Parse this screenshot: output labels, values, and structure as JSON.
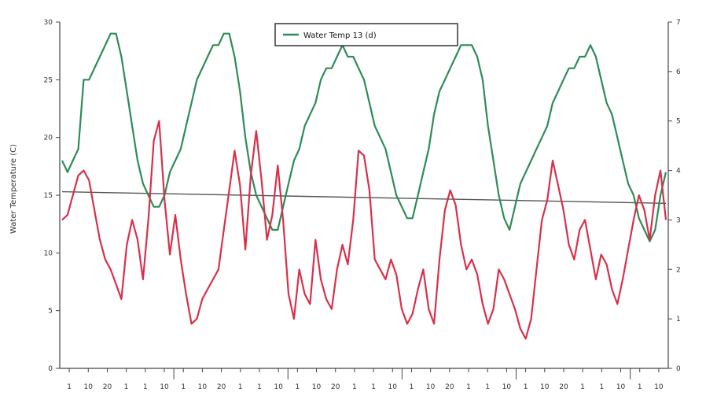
{
  "chart_data": {
    "type": "line",
    "legend": {
      "placement": "top-center",
      "label": "Water Temp 13 (d)"
    },
    "y_left": {
      "label": "Water Temperature (C)",
      "ylim": [
        0,
        30
      ],
      "ticks": [
        "0",
        "5",
        "10",
        "15",
        "20",
        "25",
        "30"
      ]
    },
    "y_right": {
      "label": "",
      "ylim": [
        0,
        7
      ],
      "ticks": [
        "0",
        "1",
        "2",
        "3",
        "4",
        "5",
        "6",
        "7"
      ]
    },
    "x_tick_labels": [
      "1",
      "10",
      "20",
      "1",
      "1",
      "10",
      "1",
      "10",
      "20",
      "1",
      "1",
      "10",
      "1",
      "10",
      "20",
      "1",
      "1",
      "10",
      "1",
      "10",
      "20",
      "1",
      "1",
      "10",
      "1",
      "10",
      "20",
      "1",
      "1",
      "10",
      "1",
      "10"
    ],
    "series": [
      {
        "axis": "left",
        "color": "#2e8b57",
        "values": [
          18,
          17,
          18,
          19,
          25,
          25,
          26,
          27,
          28,
          29,
          29,
          27,
          24,
          21,
          18,
          16,
          15,
          14,
          14,
          15,
          17,
          18,
          19,
          21,
          23,
          25,
          26,
          27,
          28,
          28,
          29,
          29,
          27,
          24,
          20,
          17,
          15,
          14,
          13,
          12,
          12,
          14,
          16,
          18,
          19,
          21,
          22,
          23,
          25,
          26,
          26,
          27,
          28,
          27,
          27,
          26,
          25,
          23,
          21,
          20,
          19,
          17,
          15,
          14,
          13,
          13,
          15,
          17,
          19,
          22,
          24,
          25,
          26,
          27,
          28,
          28,
          28,
          27,
          25,
          21,
          18,
          15,
          13,
          12,
          14,
          16,
          17,
          18,
          19,
          20,
          21,
          23,
          24,
          25,
          26,
          26,
          27,
          27,
          28,
          27,
          25,
          23,
          22,
          20,
          18,
          16,
          15,
          13,
          12,
          11,
          12,
          15,
          17
        ],
        "reference_trend": [
          15.3,
          14.3
        ]
      },
      {
        "axis": "right",
        "color": "#d9304a",
        "values": [
          3.0,
          3.1,
          3.5,
          3.9,
          4.0,
          3.8,
          3.2,
          2.6,
          2.2,
          2.0,
          1.7,
          1.4,
          2.5,
          3.0,
          2.6,
          1.8,
          3.0,
          4.6,
          5.0,
          3.4,
          2.3,
          3.1,
          2.2,
          1.5,
          0.9,
          1.0,
          1.4,
          1.6,
          1.8,
          2.0,
          2.8,
          3.6,
          4.4,
          3.7,
          2.4,
          3.9,
          4.8,
          3.8,
          2.6,
          3.1,
          4.1,
          3.0,
          1.5,
          1.0,
          2.0,
          1.5,
          1.3,
          2.6,
          1.8,
          1.4,
          1.2,
          2.0,
          2.5,
          2.1,
          3.0,
          4.4,
          4.3,
          3.6,
          2.2,
          2.0,
          1.8,
          2.2,
          1.9,
          1.2,
          0.9,
          1.1,
          1.6,
          2.0,
          1.2,
          0.9,
          2.2,
          3.2,
          3.6,
          3.3,
          2.5,
          2.0,
          2.2,
          1.9,
          1.3,
          0.9,
          1.2,
          2.0,
          1.8,
          1.5,
          1.2,
          0.8,
          0.6,
          1.0,
          2.0,
          3.0,
          3.4,
          4.2,
          3.7,
          3.2,
          2.5,
          2.2,
          2.8,
          3.0,
          2.4,
          1.8,
          2.3,
          2.1,
          1.6,
          1.3,
          1.8,
          2.4,
          3.0,
          3.5,
          3.2,
          2.6,
          3.5,
          4.0,
          3.0
        ]
      }
    ],
    "grid": false
  }
}
